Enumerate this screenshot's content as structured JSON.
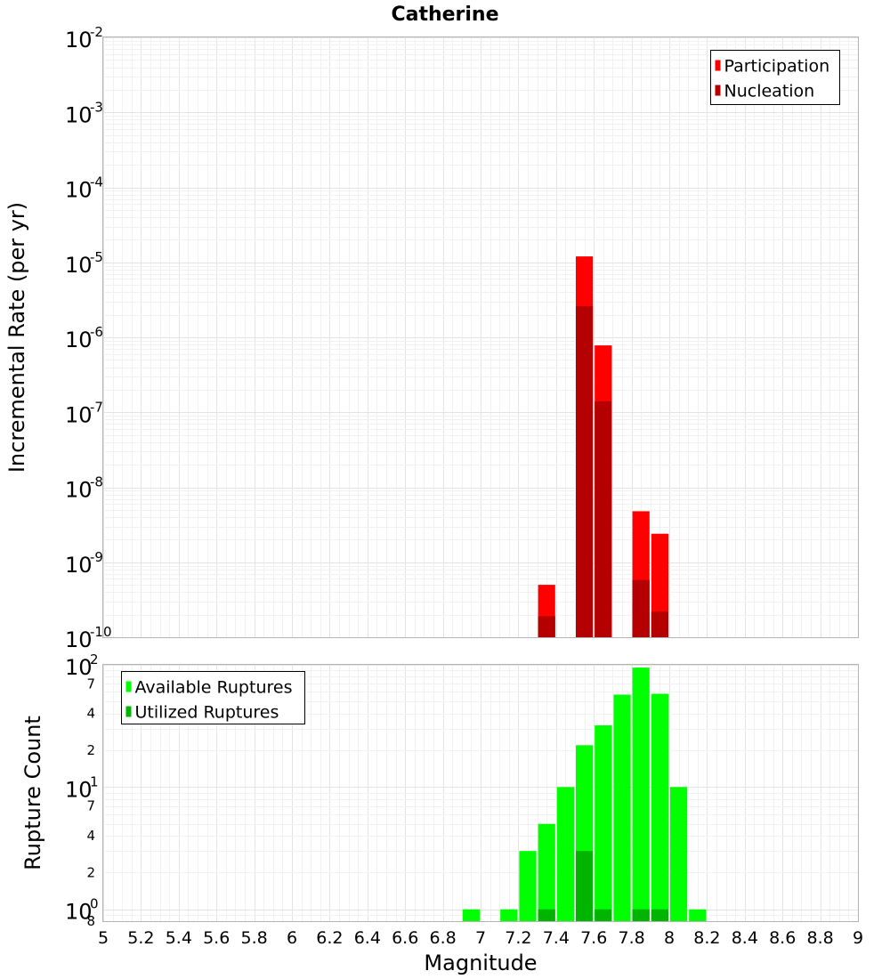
{
  "chart_data": [
    {
      "type": "bar",
      "title": "Catherine",
      "xlabel": "",
      "ylabel": "Incremental Rate (per yr)",
      "yscale": "log",
      "xlim": [
        5,
        9
      ],
      "ylim": [
        1e-10,
        0.01
      ],
      "grid": true,
      "legend_position": "top-right",
      "y_tick_labels": [
        {
          "base": "10",
          "exp": "-2"
        },
        {
          "base": "10",
          "exp": "-3"
        },
        {
          "base": "10",
          "exp": "-4"
        },
        {
          "base": "10",
          "exp": "-5"
        },
        {
          "base": "10",
          "exp": "-6"
        },
        {
          "base": "10",
          "exp": "-7"
        },
        {
          "base": "10",
          "exp": "-8"
        },
        {
          "base": "10",
          "exp": "-9"
        },
        {
          "base": "10",
          "exp": "-10"
        }
      ],
      "series": [
        {
          "name": "Participation",
          "color": "#ff0000",
          "points": [
            {
              "x": 7.35,
              "y": 5e-10
            },
            {
              "x": 7.55,
              "y": 1.2e-05
            },
            {
              "x": 7.65,
              "y": 7.8e-07
            },
            {
              "x": 7.85,
              "y": 4.8e-09
            },
            {
              "x": 7.95,
              "y": 2.4e-09
            }
          ]
        },
        {
          "name": "Nucleation",
          "color": "#b40000",
          "points": [
            {
              "x": 7.35,
              "y": 1.9e-10
            },
            {
              "x": 7.55,
              "y": 2.6e-06
            },
            {
              "x": 7.65,
              "y": 1.4e-07
            },
            {
              "x": 7.85,
              "y": 5.8e-10
            },
            {
              "x": 7.95,
              "y": 2.2e-10
            }
          ]
        }
      ]
    },
    {
      "type": "bar",
      "title": "",
      "xlabel": "Magnitude",
      "ylabel": "Rupture Count",
      "yscale": "log",
      "xlim": [
        5,
        9
      ],
      "ylim": [
        0.8,
        100
      ],
      "grid": true,
      "legend_position": "top-left",
      "x_tick_labels": [
        "5",
        "5.2",
        "5.4",
        "5.6",
        "5.8",
        "6",
        "6.2",
        "6.4",
        "6.6",
        "6.8",
        "7",
        "7.2",
        "7.4",
        "7.6",
        "7.8",
        "8",
        "8.2",
        "8.4",
        "8.6",
        "8.8",
        "9"
      ],
      "y_tick_labels": [
        {
          "base": "10",
          "exp": "2",
          "value": 100
        },
        {
          "base": "10",
          "exp": "1",
          "value": 10
        },
        {
          "base": "10",
          "exp": "0",
          "value": 1
        }
      ],
      "y_minor_labels": [
        {
          "label": "7",
          "value": 70
        },
        {
          "label": "4",
          "value": 40
        },
        {
          "label": "2",
          "value": 20
        },
        {
          "label": "7",
          "value": 7
        },
        {
          "label": "4",
          "value": 4
        },
        {
          "label": "2",
          "value": 2
        },
        {
          "label": "8",
          "value": 0.8
        }
      ],
      "series": [
        {
          "name": "Available Ruptures",
          "color": "#00ff00",
          "points": [
            {
              "x": 6.95,
              "y": 1
            },
            {
              "x": 7.15,
              "y": 1
            },
            {
              "x": 7.25,
              "y": 3
            },
            {
              "x": 7.35,
              "y": 5
            },
            {
              "x": 7.45,
              "y": 10
            },
            {
              "x": 7.55,
              "y": 22
            },
            {
              "x": 7.65,
              "y": 32
            },
            {
              "x": 7.75,
              "y": 57
            },
            {
              "x": 7.85,
              "y": 95
            },
            {
              "x": 7.95,
              "y": 58
            },
            {
              "x": 8.05,
              "y": 10
            },
            {
              "x": 8.15,
              "y": 1
            }
          ]
        },
        {
          "name": "Utilized Ruptures",
          "color": "#00b400",
          "points": [
            {
              "x": 7.35,
              "y": 1
            },
            {
              "x": 7.55,
              "y": 3
            },
            {
              "x": 7.65,
              "y": 1
            },
            {
              "x": 7.85,
              "y": 1
            },
            {
              "x": 7.95,
              "y": 1
            }
          ]
        }
      ]
    }
  ]
}
